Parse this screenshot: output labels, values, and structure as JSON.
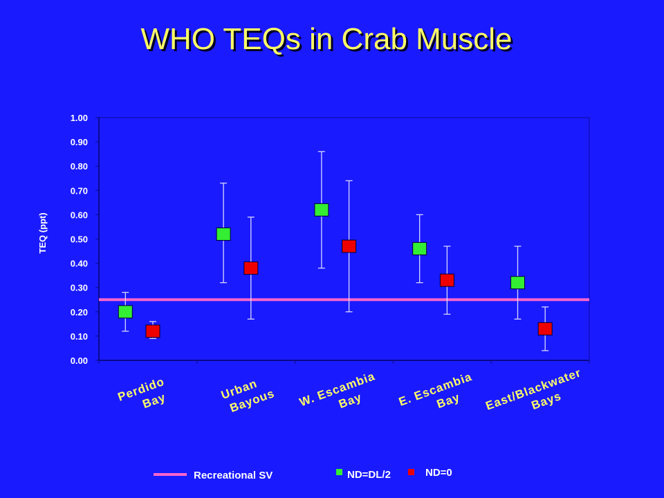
{
  "title": "WHO TEQs in Crab Muscle",
  "chart_data": {
    "type": "scatter",
    "title": "WHO TEQs in Crab Muscle",
    "ylabel": "TEQ (ppt)",
    "xlabel": "",
    "ylim": [
      0,
      1.0
    ],
    "yticks": [
      "0.00",
      "0.10",
      "0.20",
      "0.30",
      "0.40",
      "0.50",
      "0.60",
      "0.70",
      "0.80",
      "0.90",
      "1.00"
    ],
    "categories": [
      [
        "Perdido",
        "Bay"
      ],
      [
        "Urban",
        "Bayous"
      ],
      [
        "W. Escambia",
        "Bay"
      ],
      [
        "E. Escambia",
        "Bay"
      ],
      [
        "East/Blackwater",
        "Bays"
      ]
    ],
    "series": [
      {
        "name": "ND=DL/2",
        "color": "#33ee33",
        "values": [
          0.2,
          0.52,
          0.62,
          0.46,
          0.32
        ],
        "upper": [
          0.28,
          0.73,
          0.86,
          0.6,
          0.47
        ],
        "lower": [
          0.12,
          0.32,
          0.38,
          0.32,
          0.17
        ]
      },
      {
        "name": "ND=0",
        "color": "#ee0000",
        "values": [
          0.12,
          0.38,
          0.47,
          0.33,
          0.13
        ],
        "upper": [
          0.16,
          0.59,
          0.74,
          0.47,
          0.22
        ],
        "lower": [
          0.09,
          0.17,
          0.2,
          0.19,
          0.04
        ]
      }
    ],
    "reference_line": {
      "name": "Recreational SV",
      "value": 0.25,
      "color": "#ff66cc"
    },
    "grid": false,
    "legend_position": "bottom"
  }
}
